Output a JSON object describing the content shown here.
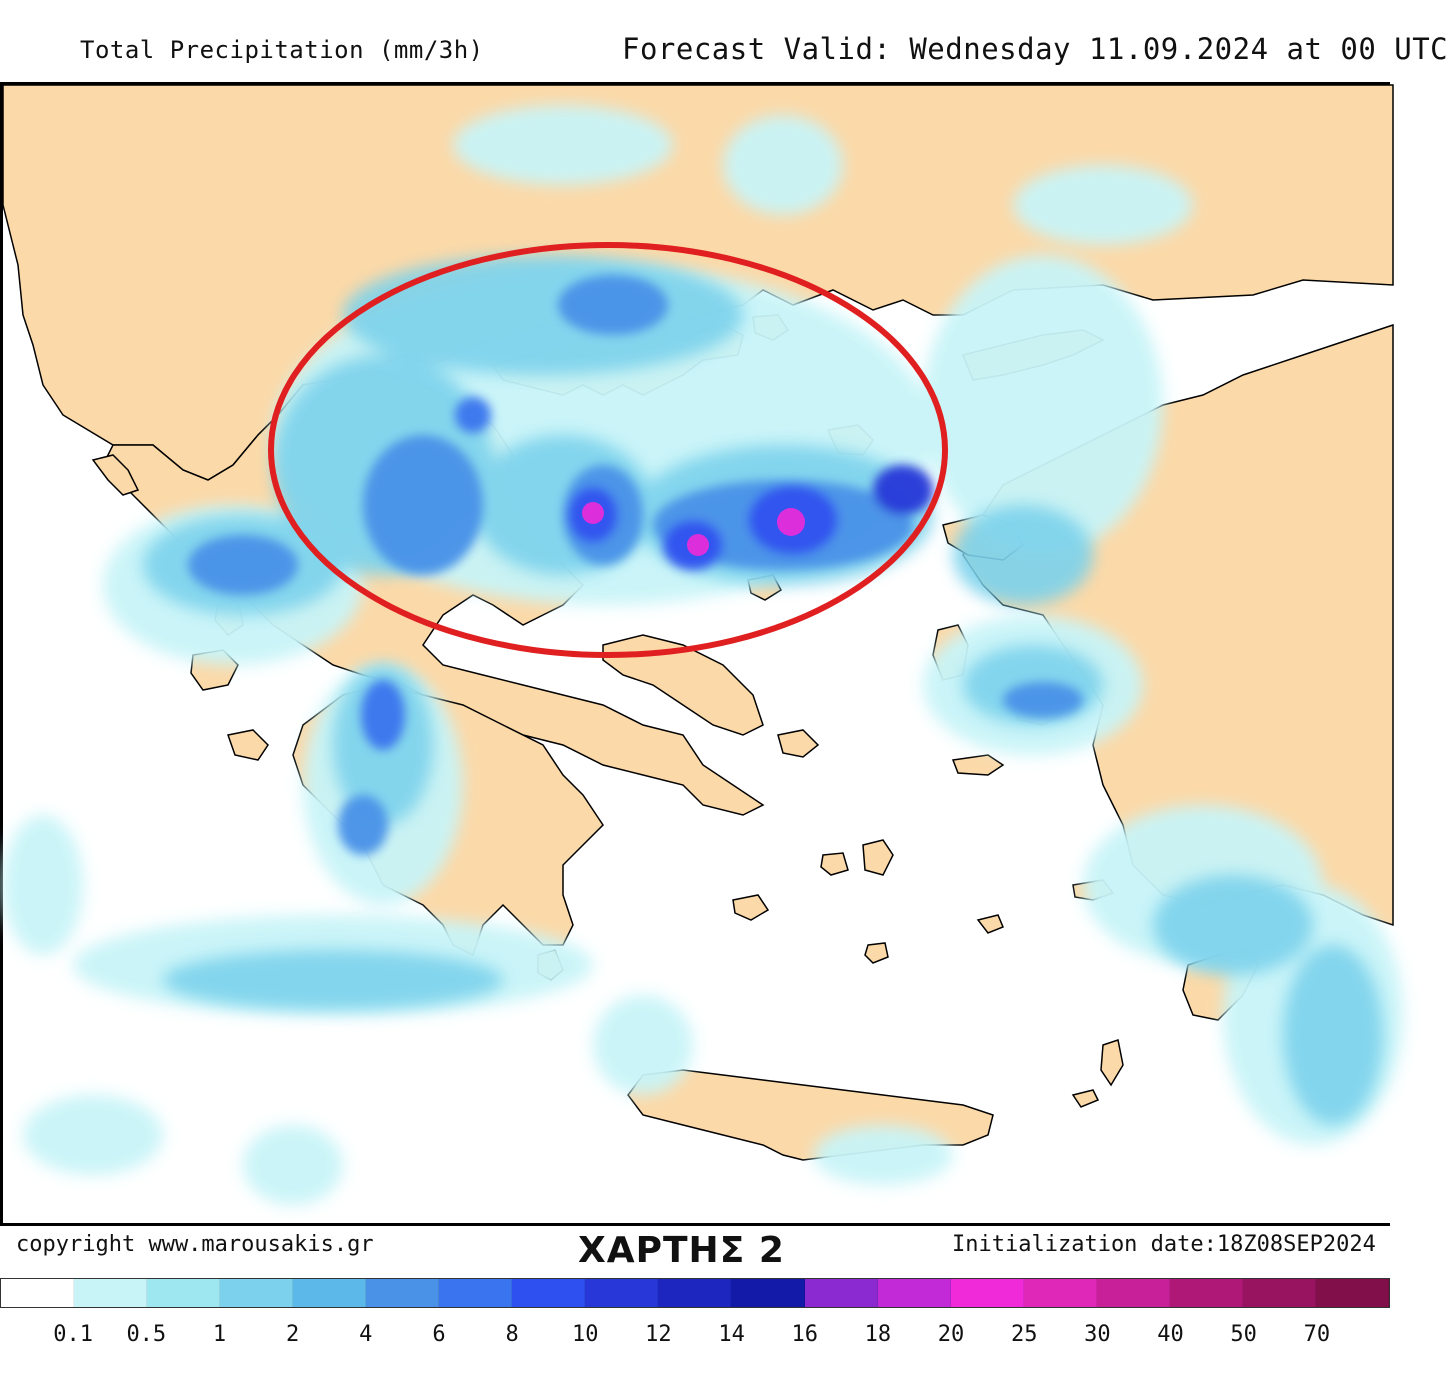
{
  "header": {
    "title": "Total Precipitation (mm/3h)",
    "valid": "Forecast Valid:  Wednesday 11.09.2024 at 00 UTC"
  },
  "footer": {
    "copyright": "copyright www.marousakis.gr",
    "map_label": "ΧΑΡΤΗΣ 2",
    "init": "Initialization date:18Z08SEP2024"
  },
  "legend": {
    "labels": [
      "0.1",
      "0.5",
      "1",
      "2",
      "4",
      "6",
      "8",
      "10",
      "12",
      "14",
      "16",
      "18",
      "20",
      "25",
      "30",
      "40",
      "50",
      "70"
    ],
    "colors": [
      "#ffffff",
      "#c8f4f8",
      "#9ee6f0",
      "#7cd2ec",
      "#5cb8e8",
      "#4a92e8",
      "#3a74ee",
      "#2e50f0",
      "#2838d8",
      "#1e26c0",
      "#141aa8",
      "#8a2ad0",
      "#c22ad8",
      "#f02ad8",
      "#e028b8",
      "#c82098",
      "#b01878",
      "#981460",
      "#800f4a"
    ]
  },
  "colors": {
    "land": "#fcd9a8",
    "sea": "#ffffff",
    "highlight_ellipse": "#e02020",
    "coastline": "#000000"
  }
}
